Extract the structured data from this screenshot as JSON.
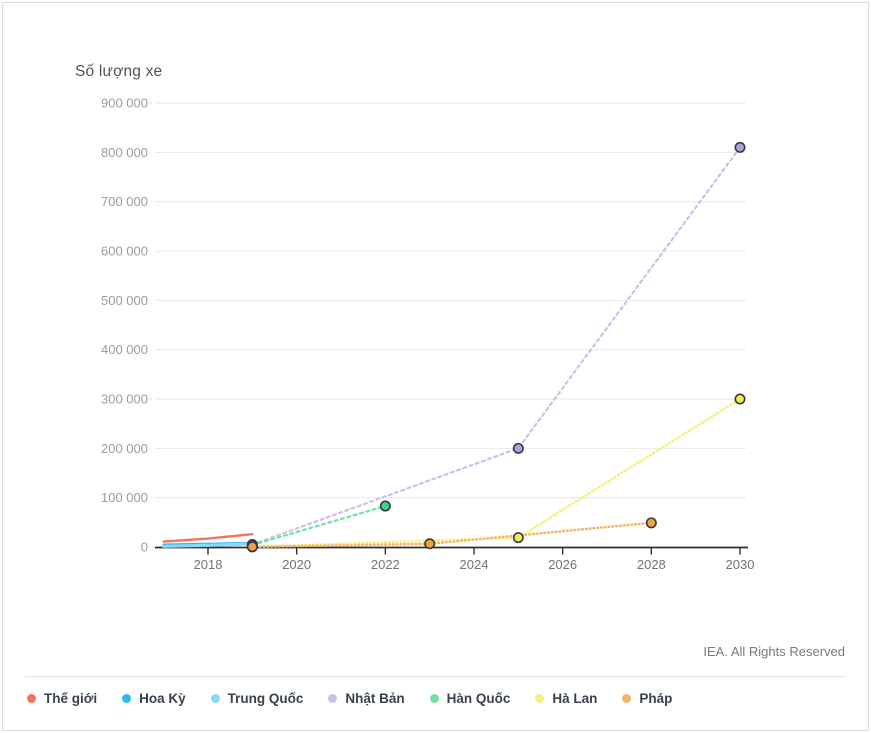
{
  "page": {
    "source": "IEA. All Rights Reserved"
  },
  "chart_data": {
    "type": "line",
    "title": "Số lượng xe",
    "xlabel": "",
    "ylabel": "Số lượng xe",
    "xlim": [
      2016.9,
      2030.25
    ],
    "ylim": [
      0,
      900000
    ],
    "grid": "horizontal",
    "legend_position": "bottom",
    "x_ticks": [
      2018,
      2020,
      2022,
      2024,
      2026,
      2028,
      2030
    ],
    "y_ticks": [
      0,
      100000,
      200000,
      300000,
      400000,
      500000,
      600000,
      700000,
      800000,
      900000
    ],
    "y_tick_labels": [
      "0",
      "100 000",
      "200 000",
      "300 000",
      "400 000",
      "500 000",
      "600 000",
      "700 000",
      "800 000",
      "900 000"
    ],
    "series": [
      {
        "name": "Thế giới",
        "color": "#f4745b",
        "style": "solid",
        "width": 2.4,
        "markers": false,
        "points": [
          [
            2017,
            11000
          ],
          [
            2018,
            17000
          ],
          [
            2019,
            26000
          ]
        ]
      },
      {
        "name": "Hoa Kỳ",
        "color": "#30b7f2",
        "style": "solid",
        "width": 2.6,
        "markers": false,
        "points": [
          [
            2017,
            4500
          ],
          [
            2018,
            6200
          ],
          [
            2019,
            8000
          ]
        ]
      },
      {
        "name": "Trung Quốc",
        "color": "#8ad7f8",
        "style": "solid",
        "width": 3.2,
        "markers": false,
        "points": [
          [
            2017,
            1500
          ],
          [
            2018,
            3500
          ],
          [
            2019,
            6200
          ]
        ]
      },
      {
        "name": "Nhật Bản",
        "color": "#cdbfec",
        "style": "dashed",
        "width": 2.2,
        "markers": true,
        "marker_fill": "#b49fdd",
        "points": [
          [
            2019,
            5000
          ],
          [
            2025,
            200000
          ],
          [
            2030,
            810000
          ]
        ]
      },
      {
        "name": "Hàn Quốc",
        "color": "#73e0a8",
        "style": "dashed",
        "width": 2.2,
        "markers": true,
        "marker_fill": "#42d38b",
        "points": [
          [
            2019,
            4000
          ],
          [
            2022,
            83000
          ]
        ]
      },
      {
        "name": "Hà Lan",
        "color": "#f7ef7c",
        "style": "dotted",
        "width": 2.6,
        "markers": true,
        "marker_fill": "#f4ea52",
        "points": [
          [
            2019,
            300
          ],
          [
            2025,
            19000
          ],
          [
            2030,
            300000
          ]
        ]
      },
      {
        "name": "Pháp",
        "color": "#f5b567",
        "style": "dotted",
        "width": 2.6,
        "markers": true,
        "marker_fill": "#f1a33d",
        "points": [
          [
            2019,
            500
          ],
          [
            2023,
            6500
          ],
          [
            2028,
            49000
          ]
        ]
      }
    ]
  }
}
